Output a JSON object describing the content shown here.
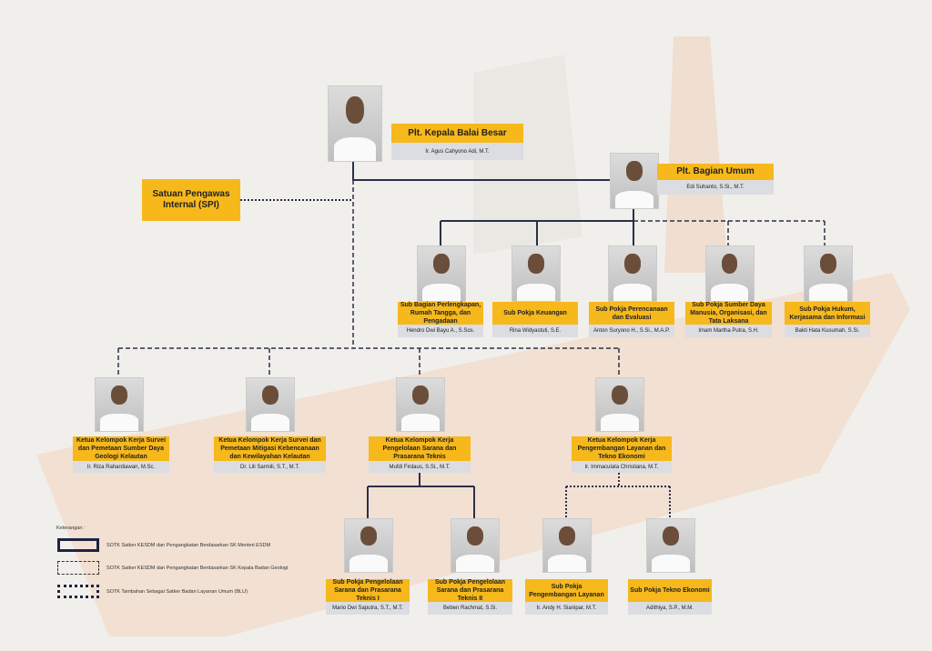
{
  "head": {
    "title": "Plt. Kepala Balai Besar",
    "name": "Ir. Agus Cahyono Adi, M.T."
  },
  "spi": {
    "title": "Satuan Pengawas Internal (SPI)"
  },
  "bagian_umum": {
    "title": "Plt. Bagian Umum",
    "name": "Edi Suhanto, S.Si., M.T."
  },
  "sub_umum": [
    {
      "title": "Sub Bagian Perlengkapan, Rumah Tangga, dan Pengadaan",
      "name": "Hendro Dwi Bayu A., S.Sos."
    },
    {
      "title": "Sub Pokja Keuangan",
      "name": "Rina Widyastuti, S.E."
    },
    {
      "title": "Sub Pokja Perencanaan dan Evaluasi",
      "name": "Anton Suryono H., S.Si., M.A.P."
    },
    {
      "title": "Sub Pokja Sumber Daya Manusia, Organisasi, dan Tata Laksana",
      "name": "Imam Martha Putra, S.H."
    },
    {
      "title": "Sub Pokja Hukum, Kerjasama dan Informasi",
      "name": "Bakti Hata Kusumah, S.Si."
    }
  ],
  "kelompok": [
    {
      "title": "Ketua Kelompok Kerja Survei dan Pemetaan Sumber Daya Geologi Kelautan",
      "name": "Ir. Riza Rahardiawan, M.Sc."
    },
    {
      "title": "Ketua Kelompok Kerja Survei dan Pemetaan Mitigasi Kebencanaan dan Kewilayahan Kelautan",
      "name": "Dr. Lili Sarmili, S.T., M.T."
    },
    {
      "title": "Ketua Kelompok Kerja Pengelolaan Sarana dan Prasarana Teknis",
      "name": "Mufdi Firdaus, S.Si., M.T."
    },
    {
      "title": "Ketua Kelompok Kerja Pengembangan Layanan dan Tekno Ekonomi",
      "name": "Ir. Immaculata Christiana, M.T."
    }
  ],
  "sub_kelompok": [
    {
      "title": "Sub Pokja Pengelolaan Sarana dan Prasarana Teknis I",
      "name": "Mario Dwi Saputra, S.T., M.T."
    },
    {
      "title": "Sub Pokja Pengelolaan Sarana dan Prasarana Teknis II",
      "name": "Beben Rachmat, S.Si."
    },
    {
      "title": "Sub Pokja Pengembangan Layanan",
      "name": "Ir. Andy H. Sianipar, M.T."
    },
    {
      "title": "Sub Pokja Tekno Ekonomi",
      "name": "Adithiya, S.P., M.M."
    }
  ],
  "legend": {
    "heading": "Keterangan :",
    "items": [
      "SOTK Satker KESDM dan Pengangkatan Berdasarkan SK Menteri ESDM",
      "SOTK Satker KESDM dan Pengangkatan Berdasarkan SK Kepala Badan Geologi",
      "SOTK Tambahan Sebagai Satker Badan Layanan Umum (BLU)"
    ]
  },
  "colors": {
    "title_box": "#f6b81b",
    "name_box": "#dcdde2",
    "line": "#2a3048",
    "background": "#f1efeb"
  }
}
